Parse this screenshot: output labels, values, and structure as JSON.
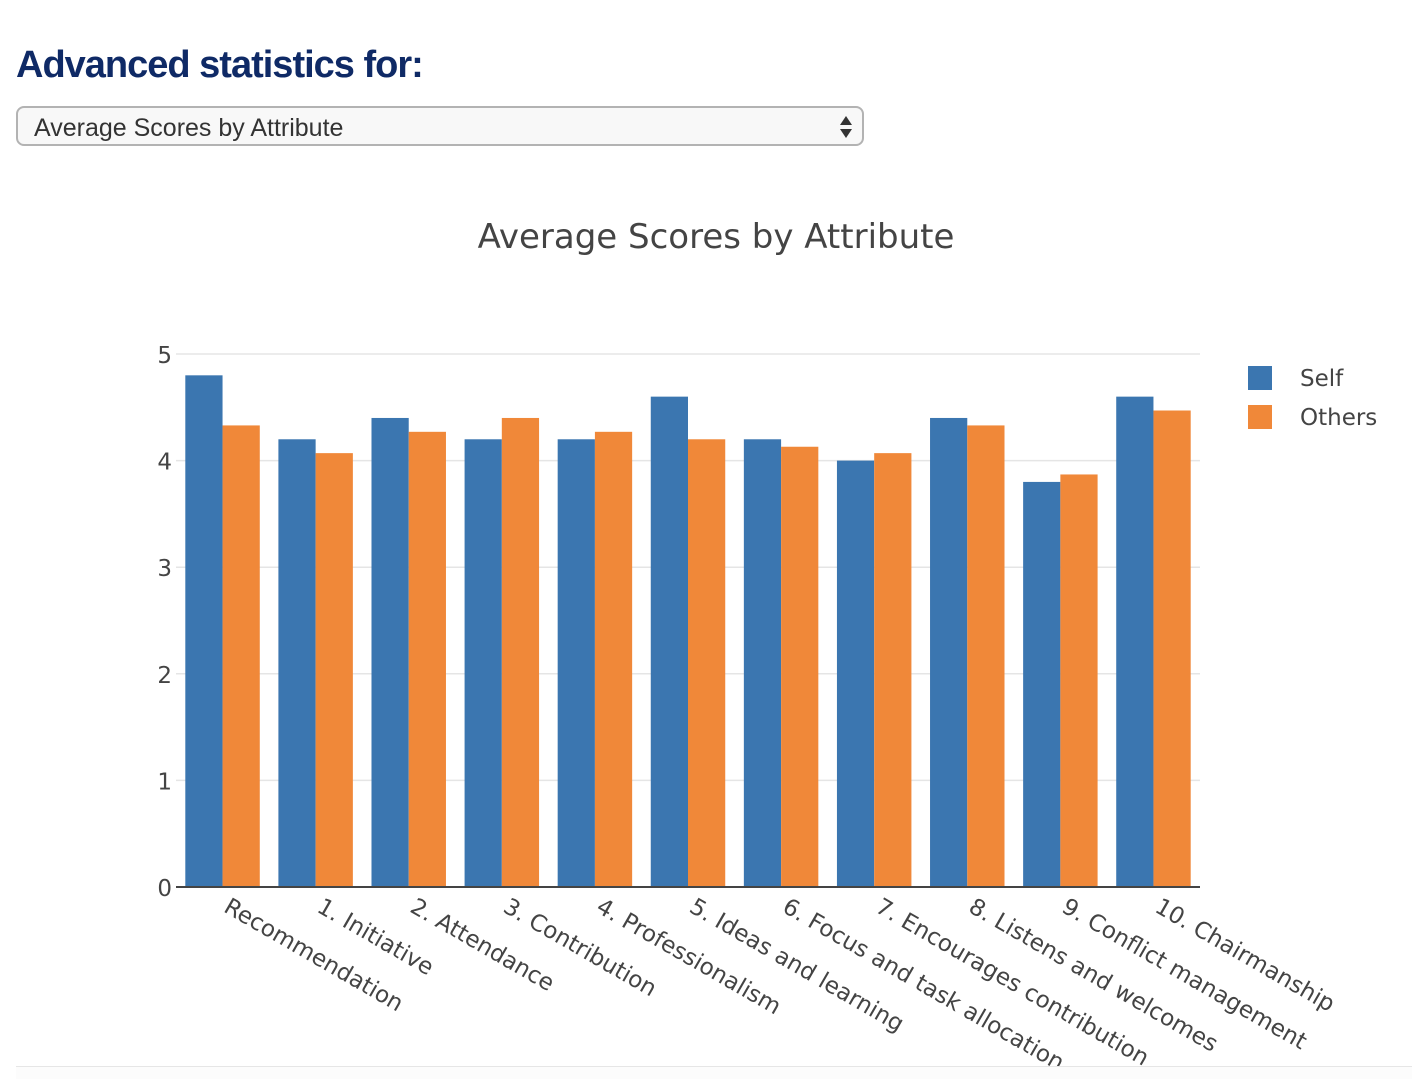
{
  "header": {
    "title": "Advanced statistics for:"
  },
  "selector": {
    "value": "Average Scores by Attribute"
  },
  "icons": {
    "select_arrows": "up-down-arrows-icon"
  },
  "colors": {
    "heading": "#0f2a66",
    "self": "#3b76b0",
    "others": "#f08839"
  },
  "chart_data": {
    "type": "bar",
    "title": "Average Scores by Attribute",
    "categories": [
      "Recommendation",
      "1. Initiative",
      "2. Attendance",
      "3. Contribution",
      "4. Professionalism",
      "5. Ideas and learning",
      "6. Focus and task allocation",
      "7. Encourages contribution",
      "8. Listens and welcomes",
      "9. Conflict management",
      "10. Chairmanship"
    ],
    "series": [
      {
        "name": "Self",
        "values": [
          4.8,
          4.2,
          4.4,
          4.2,
          4.2,
          4.6,
          4.2,
          4.0,
          4.4,
          3.8,
          4.6
        ]
      },
      {
        "name": "Others",
        "values": [
          4.33,
          4.07,
          4.27,
          4.4,
          4.27,
          4.2,
          4.13,
          4.07,
          4.33,
          3.87,
          4.47
        ]
      }
    ],
    "ylim": [
      0,
      5
    ],
    "yticks": [
      0,
      1,
      2,
      3,
      4,
      5
    ],
    "grid": true,
    "legend_position": "top-right"
  }
}
